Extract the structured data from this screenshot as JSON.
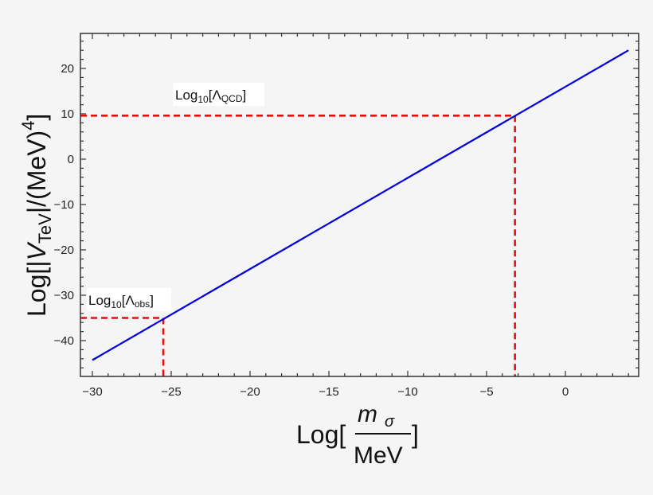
{
  "chart_data": {
    "type": "line",
    "title": "",
    "xlabel": "Log[m_σ / MeV]",
    "ylabel": "Log[|V_TeV|/(MeV)^4]",
    "xlim": [
      -30.8,
      4.6
    ],
    "ylim": [
      -47.5,
      28
    ],
    "x_ticks": [
      -30,
      -25,
      -20,
      -15,
      -10,
      -5,
      0
    ],
    "y_ticks": [
      -40,
      -30,
      -20,
      -10,
      0,
      10,
      20
    ],
    "grid": false,
    "series": [
      {
        "name": "Log|V_TeV|",
        "color": "#0000dd",
        "x": [
          -30,
          4
        ],
        "y": [
          -44.3,
          24
        ]
      }
    ],
    "annotations": [
      {
        "label": "Log10[Λ_QCD]",
        "x": -3.2,
        "y": 9.6,
        "style": "red dashed guide lines"
      },
      {
        "label": "Log10[Λ_obs]",
        "x": -25.5,
        "y": -35,
        "style": "red dashed guide lines"
      }
    ]
  },
  "labels": {
    "x_log": "Log[",
    "x_num": "m",
    "x_num_sub": "σ",
    "x_den": "MeV",
    "x_close": "]",
    "y_pre": "Log[|",
    "y_V": "V",
    "y_sub": "TeV",
    "y_mid": "|/(MeV)",
    "y_sup": "4",
    "y_close": "]",
    "ann_qcd_pre": "Log",
    "ann_qcd_sub10": "10",
    "ann_qcd_mid": "[Λ",
    "ann_qcd_sub": "QCD",
    "ann_qcd_close": "]",
    "ann_obs_pre": "Log",
    "ann_obs_sub10": "10",
    "ann_obs_mid": "[Λ",
    "ann_obs_sub": "obs",
    "ann_obs_close": "]"
  },
  "colors": {
    "line": "#0000dd",
    "guide": "#e01010",
    "frame": "#333333"
  }
}
